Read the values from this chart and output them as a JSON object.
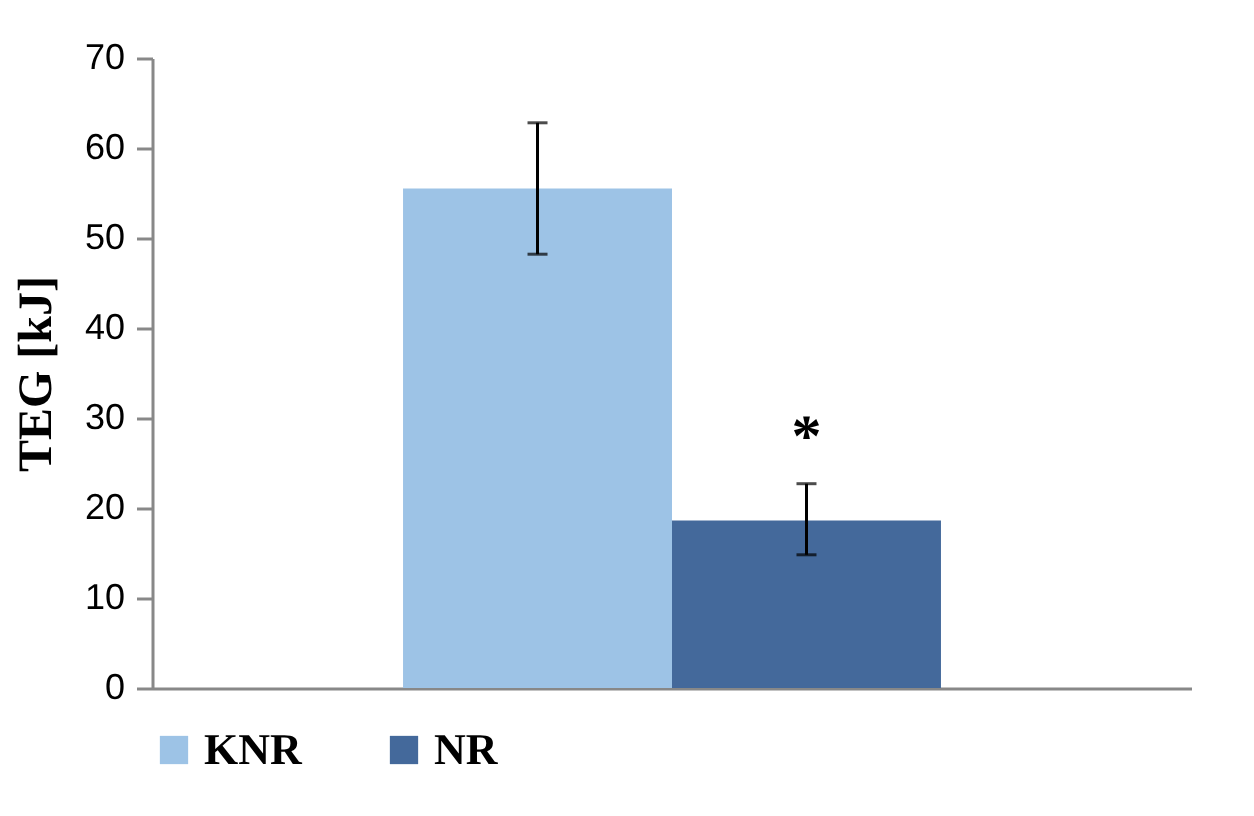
{
  "chart_data": {
    "type": "bar",
    "ylabel": "TEG [kJ]",
    "categories": [
      null
    ],
    "series": [
      {
        "name": "KNR",
        "color": "#9dc3e6",
        "values": [
          55.5
        ],
        "errors": [
          [
            48.2,
            62.8
          ]
        ]
      },
      {
        "name": "NR",
        "color": "#44699b",
        "values": [
          18.6
        ],
        "errors": [
          [
            14.8,
            22.7
          ]
        ]
      }
    ],
    "ylim": [
      0,
      70
    ],
    "yticks": [
      0,
      10,
      20,
      30,
      40,
      50,
      60,
      70
    ],
    "grid": false,
    "legend": "bottom",
    "annotations": [
      "*"
    ]
  }
}
